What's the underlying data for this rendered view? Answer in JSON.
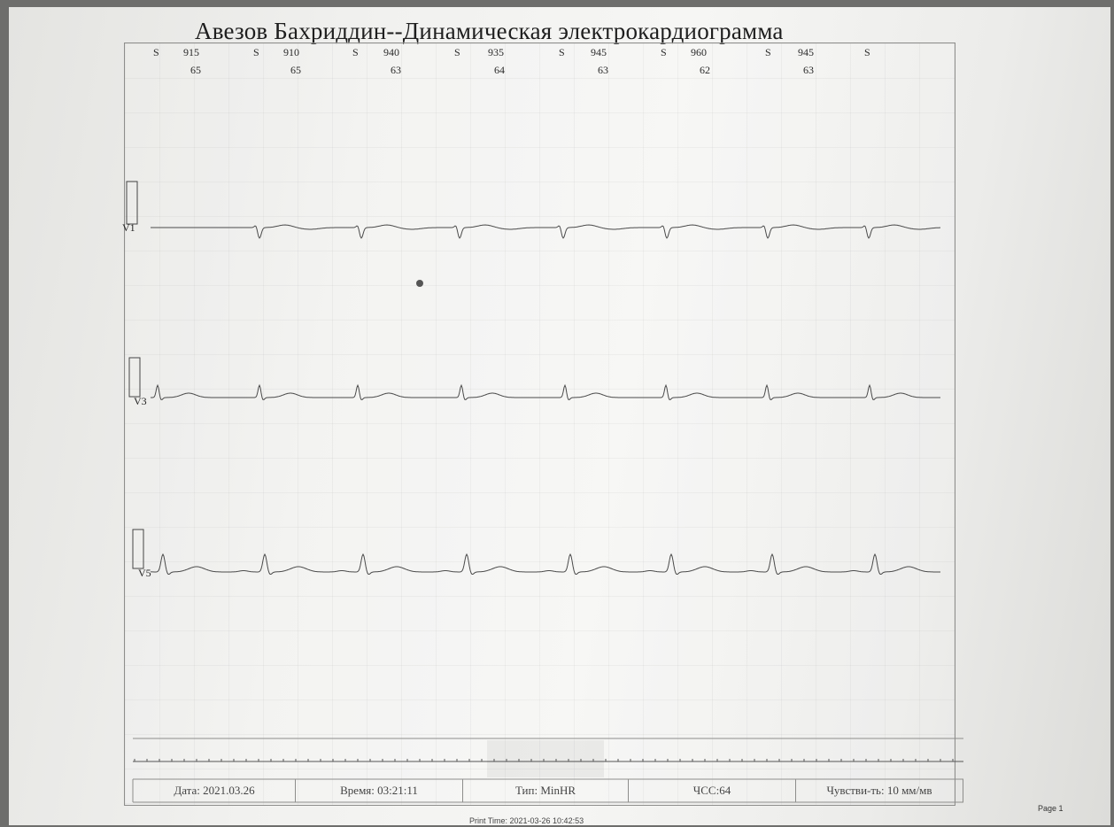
{
  "header": {
    "title": "Авезов Бахриддин--Динамическая электрокардиограмма"
  },
  "beats": [
    {
      "type": "S",
      "rr": "915",
      "hr": "65"
    },
    {
      "type": "S",
      "rr": "910",
      "hr": "65"
    },
    {
      "type": "S",
      "rr": "940",
      "hr": "63"
    },
    {
      "type": "S",
      "rr": "935",
      "hr": "64"
    },
    {
      "type": "S",
      "rr": "945",
      "hr": "63"
    },
    {
      "type": "S",
      "rr": "960",
      "hr": "62"
    },
    {
      "type": "S",
      "rr": "945",
      "hr": "63"
    },
    {
      "type": "S",
      "rr": "",
      "hr": ""
    }
  ],
  "leads": [
    {
      "label": "V1"
    },
    {
      "label": "V3"
    },
    {
      "label": "V5"
    }
  ],
  "footer": {
    "date": "Дата: 2021.03.26",
    "time": "Время: 03:21:11",
    "type": "Тип: MinHR",
    "hr": "ЧСС:64",
    "sensitivity": "Чувстви-ть: 10 мм/мв"
  },
  "print_time": "Print Time: 2021-03-26 10:42:53",
  "page": "Page 1",
  "colors": {
    "trace": "#4a4a4a",
    "paper": "#f3f3f1",
    "frame": "#8d8d8b"
  }
}
